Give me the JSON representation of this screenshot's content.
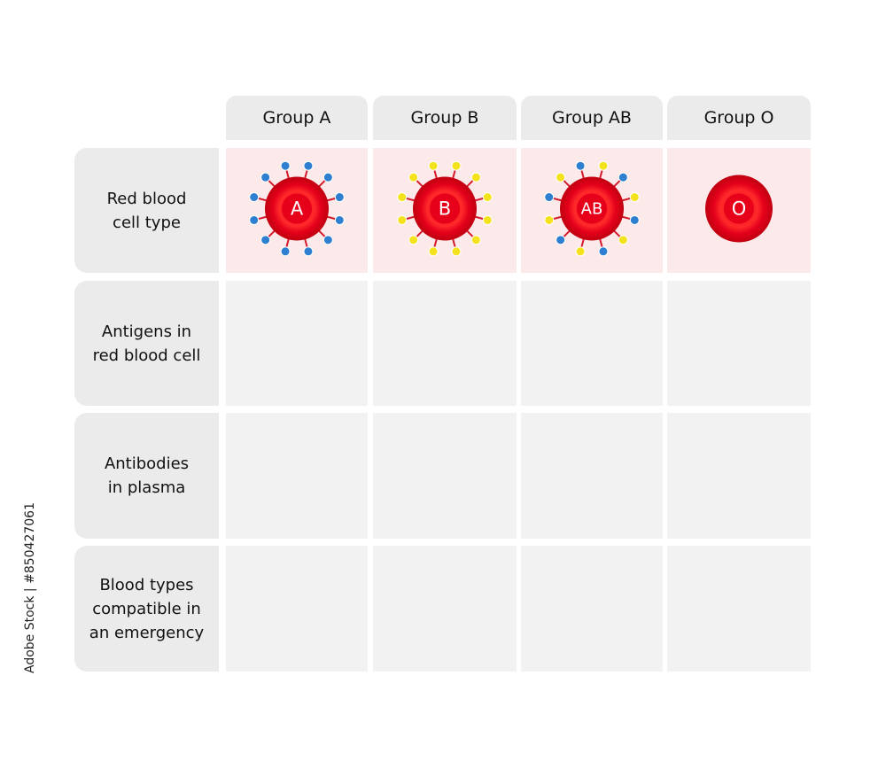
{
  "columns": [
    "Group A",
    "Group B",
    "Group AB",
    "Group O"
  ],
  "rows": [
    {
      "label": [
        "Red blood",
        "cell type"
      ],
      "cells": [
        "A",
        "B",
        "AB",
        "O"
      ]
    },
    {
      "label": [
        "Antigens in",
        "red blood cell"
      ]
    },
    {
      "label": [
        "Antibodies",
        "in plasma"
      ]
    },
    {
      "label": [
        "Blood types",
        "compatible in",
        "an emergency"
      ]
    }
  ],
  "watermark": "Adobe Stock | #850427061"
}
